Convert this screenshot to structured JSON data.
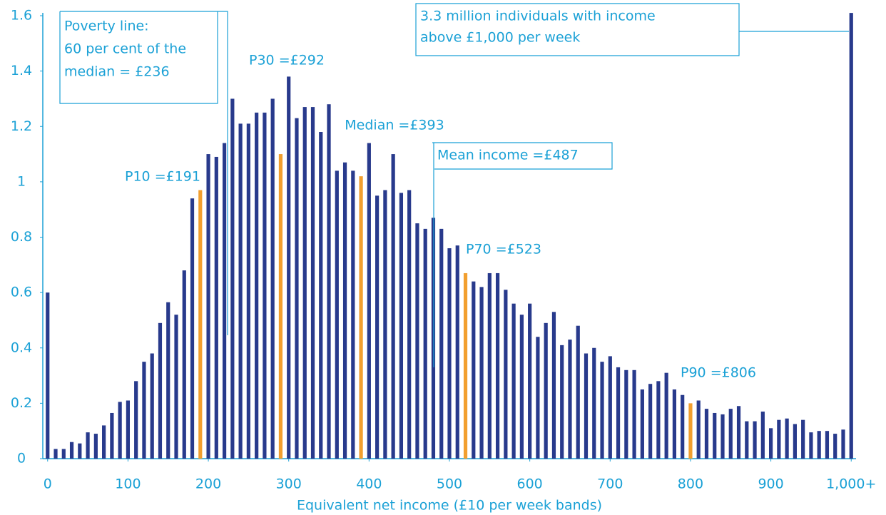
{
  "chart_data": {
    "type": "bar",
    "x_label": "Equivalent net income (£10 per week bands)",
    "x": [
      0,
      10,
      20,
      30,
      40,
      50,
      60,
      70,
      80,
      90,
      100,
      110,
      120,
      130,
      140,
      150,
      160,
      170,
      180,
      190,
      200,
      210,
      220,
      230,
      240,
      250,
      260,
      270,
      280,
      290,
      300,
      310,
      320,
      330,
      340,
      350,
      360,
      370,
      380,
      390,
      400,
      410,
      420,
      430,
      440,
      450,
      460,
      470,
      480,
      490,
      500,
      510,
      520,
      530,
      540,
      550,
      560,
      570,
      580,
      590,
      600,
      610,
      620,
      630,
      640,
      650,
      660,
      670,
      680,
      690,
      700,
      710,
      720,
      730,
      740,
      750,
      760,
      770,
      780,
      790,
      800,
      810,
      820,
      830,
      840,
      850,
      860,
      870,
      880,
      890,
      900,
      910,
      920,
      930,
      940,
      950,
      960,
      970,
      980,
      990,
      1000
    ],
    "values": [
      0.6,
      0.035,
      0.035,
      0.06,
      0.055,
      0.095,
      0.09,
      0.12,
      0.165,
      0.205,
      0.21,
      0.28,
      0.35,
      0.38,
      0.49,
      0.565,
      0.52,
      0.68,
      0.94,
      0.97,
      1.1,
      1.09,
      1.14,
      1.3,
      1.21,
      1.21,
      1.25,
      1.25,
      1.3,
      1.1,
      1.38,
      1.23,
      1.27,
      1.27,
      1.18,
      1.28,
      1.04,
      1.07,
      1.04,
      1.02,
      1.14,
      0.95,
      0.97,
      1.1,
      0.96,
      0.97,
      0.85,
      0.83,
      0.87,
      0.83,
      0.76,
      0.77,
      0.67,
      0.64,
      0.62,
      0.67,
      0.67,
      0.61,
      0.56,
      0.52,
      0.56,
      0.44,
      0.49,
      0.53,
      0.41,
      0.43,
      0.48,
      0.38,
      0.4,
      0.35,
      0.37,
      0.33,
      0.32,
      0.32,
      0.25,
      0.27,
      0.28,
      0.31,
      0.25,
      0.23,
      0.2,
      0.21,
      0.18,
      0.165,
      0.16,
      0.18,
      0.19,
      0.135,
      0.135,
      0.17,
      0.11,
      0.14,
      0.145,
      0.125,
      0.14,
      0.095,
      0.1,
      0.1,
      0.09,
      0.105,
      1.61
    ],
    "color": "#283a8c",
    "highlighted": [
      19,
      29,
      39,
      52,
      80
    ],
    "highlight_color": "#f29f2e",
    "xlim": [
      -6,
      1006
    ],
    "xticks": [
      0,
      100,
      200,
      300,
      400,
      500,
      600,
      700,
      800,
      900,
      {
        "value": 1000,
        "label": "1,000+"
      }
    ],
    "ylim": [
      0,
      1.6
    ],
    "yticks": [
      0,
      0.2,
      0.4,
      0.6,
      0.8,
      1,
      1.2,
      1.4,
      1.6
    ],
    "annotations": {
      "poverty": [
        "Poverty line:",
        "60 per cent of the",
        "median = £236"
      ],
      "p30": "P30 =£292",
      "median": "Median =£393",
      "mean": "Mean income =£487",
      "p10": "P10 =£191",
      "p70": "P70 =£523",
      "p90": "P90 =£806",
      "top": [
        "3.3 million individuals with income",
        "above £1,000 per week"
      ]
    }
  }
}
